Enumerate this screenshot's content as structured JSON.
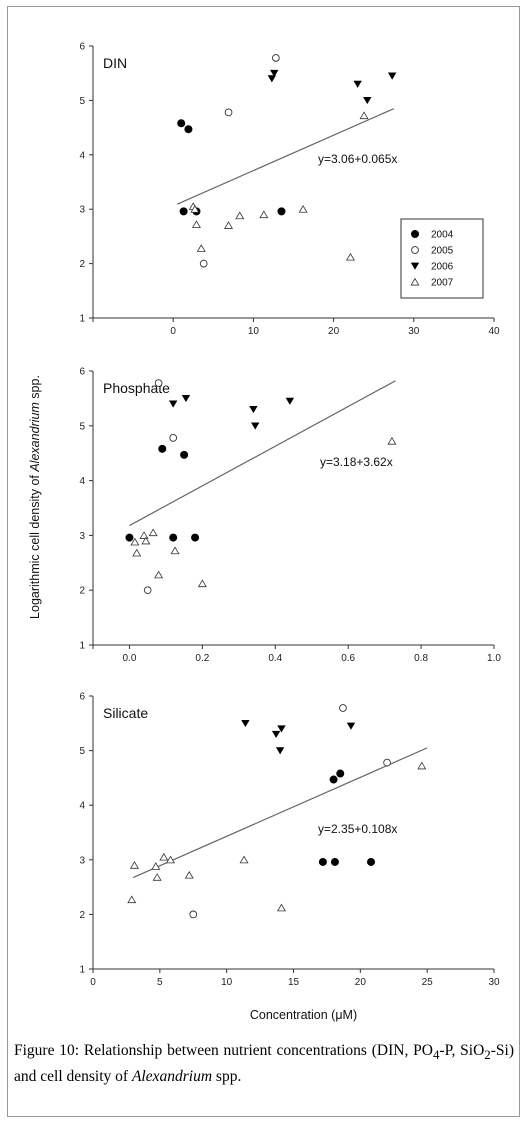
{
  "chart_data": [
    {
      "type": "scatter",
      "title": "DIN",
      "xlim": [
        -10,
        40
      ],
      "ylim": [
        1,
        6
      ],
      "xticks": [
        0,
        10,
        20,
        30,
        40
      ],
      "yticks": [
        1,
        2,
        3,
        4,
        5,
        6
      ],
      "equation": "y=3.06+0.065x",
      "regression": {
        "intercept": 3.06,
        "slope": 0.065,
        "x_range": [
          0.5,
          27.5
        ]
      },
      "series": [
        {
          "name": "2004",
          "marker": "filled-circle",
          "points": [
            [
              1.0,
              4.58
            ],
            [
              1.9,
              4.47
            ],
            [
              1.3,
              2.96
            ],
            [
              2.9,
              2.96
            ],
            [
              13.5,
              2.96
            ]
          ]
        },
        {
          "name": "2005",
          "marker": "open-circle",
          "points": [
            [
              12.8,
              5.78
            ],
            [
              6.9,
              4.78
            ],
            [
              3.8,
              2.0
            ]
          ]
        },
        {
          "name": "2006",
          "marker": "filled-triangle-down",
          "points": [
            [
              12.3,
              5.4
            ],
            [
              12.6,
              5.5
            ],
            [
              23.0,
              5.3
            ],
            [
              27.3,
              5.45
            ],
            [
              24.2,
              5.0
            ]
          ]
        },
        {
          "name": "2007",
          "marker": "open-triangle-up",
          "points": [
            [
              2.5,
              3.05
            ],
            [
              2.7,
              3.0
            ],
            [
              2.9,
              2.72
            ],
            [
              3.5,
              2.28
            ],
            [
              6.9,
              2.7
            ],
            [
              8.3,
              2.88
            ],
            [
              11.3,
              2.9
            ],
            [
              16.2,
              3.0
            ],
            [
              22.1,
              2.12
            ],
            [
              23.8,
              4.72
            ]
          ]
        }
      ]
    },
    {
      "type": "scatter",
      "title": "Phosphate",
      "xlim": [
        -1.0,
        1.0
      ],
      "xlim_display": [
        -0.1,
        1.0
      ],
      "ylim": [
        1,
        6
      ],
      "xticks_labels": [
        "0.0",
        "0.2",
        "0.4",
        "0.6",
        "0.8",
        "1.0"
      ],
      "xticks_values": [
        0.0,
        0.2,
        0.4,
        0.6,
        0.8,
        1.0
      ],
      "yticks": [
        1,
        2,
        3,
        4,
        5,
        6
      ],
      "equation": "y=3.18+3.62x",
      "regression": {
        "intercept": 3.18,
        "slope": 3.62,
        "x_range": [
          0.0,
          0.73
        ]
      },
      "series": [
        {
          "name": "2004",
          "marker": "filled-circle",
          "points": [
            [
              0.0,
              2.96
            ],
            [
              0.09,
              4.58
            ],
            [
              0.15,
              4.47
            ],
            [
              0.12,
              2.96
            ],
            [
              0.18,
              2.96
            ]
          ]
        },
        {
          "name": "2005",
          "marker": "open-circle",
          "points": [
            [
              0.08,
              5.78
            ],
            [
              0.12,
              4.78
            ],
            [
              0.05,
              2.0
            ]
          ]
        },
        {
          "name": "2006",
          "marker": "filled-triangle-down",
          "points": [
            [
              0.12,
              5.4
            ],
            [
              0.155,
              5.5
            ],
            [
              0.34,
              5.3
            ],
            [
              0.345,
              5.0
            ],
            [
              0.44,
              5.45
            ]
          ]
        },
        {
          "name": "2007",
          "marker": "open-triangle-up",
          "points": [
            [
              0.015,
              2.88
            ],
            [
              0.02,
              2.68
            ],
            [
              0.04,
              3.0
            ],
            [
              0.045,
              2.9
            ],
            [
              0.08,
              2.28
            ],
            [
              0.125,
              2.72
            ],
            [
              0.2,
              2.12
            ],
            [
              0.72,
              4.72
            ],
            [
              0.065,
              3.05
            ]
          ]
        }
      ]
    },
    {
      "type": "scatter",
      "title": "Silicate",
      "xlim": [
        0,
        30
      ],
      "ylim": [
        1,
        6
      ],
      "xticks": [
        0,
        5,
        10,
        15,
        20,
        25,
        30
      ],
      "yticks": [
        1,
        2,
        3,
        4,
        5,
        6
      ],
      "equation": "y=2.35+0.108x",
      "xlabel": "Concentration (μM)",
      "regression": {
        "intercept": 2.35,
        "slope": 0.108,
        "x_range": [
          3.0,
          25.0
        ]
      },
      "series": [
        {
          "name": "2004",
          "marker": "filled-circle",
          "points": [
            [
              18.0,
              4.47
            ],
            [
              18.5,
              4.58
            ],
            [
              17.2,
              2.96
            ],
            [
              18.1,
              2.96
            ],
            [
              20.8,
              2.96
            ]
          ]
        },
        {
          "name": "2005",
          "marker": "open-circle",
          "points": [
            [
              18.7,
              5.78
            ],
            [
              22.0,
              4.78
            ],
            [
              7.5,
              2.0
            ]
          ]
        },
        {
          "name": "2006",
          "marker": "filled-triangle-down",
          "points": [
            [
              11.4,
              5.5
            ],
            [
              13.7,
              5.3
            ],
            [
              14.1,
              5.4
            ],
            [
              14.0,
              5.0
            ],
            [
              19.3,
              5.45
            ]
          ]
        },
        {
          "name": "2007",
          "marker": "open-triangle-up",
          "points": [
            [
              3.1,
              2.9
            ],
            [
              2.9,
              2.27
            ],
            [
              4.7,
              2.88
            ],
            [
              4.8,
              2.68
            ],
            [
              5.3,
              3.05
            ],
            [
              5.8,
              3.0
            ],
            [
              7.2,
              2.72
            ],
            [
              11.3,
              3.0
            ],
            [
              14.1,
              2.12
            ],
            [
              24.6,
              4.72
            ]
          ]
        }
      ]
    }
  ],
  "shared": {
    "ylabel_prefix": "Logarithmic cell density of ",
    "ylabel_italic": "Alexandrium",
    "ylabel_suffix": " spp.",
    "legend": [
      "2004",
      "2005",
      "2006",
      "2007"
    ]
  },
  "caption": {
    "prefix": "Figure 10: Relationship between nutrient concentrations (DIN, PO",
    "sub1": "4",
    "mid1": "-P, SiO",
    "sub2": "2",
    "mid2": "-Si) and cell density of ",
    "italic": "Alexandrium",
    "suffix": " spp."
  }
}
